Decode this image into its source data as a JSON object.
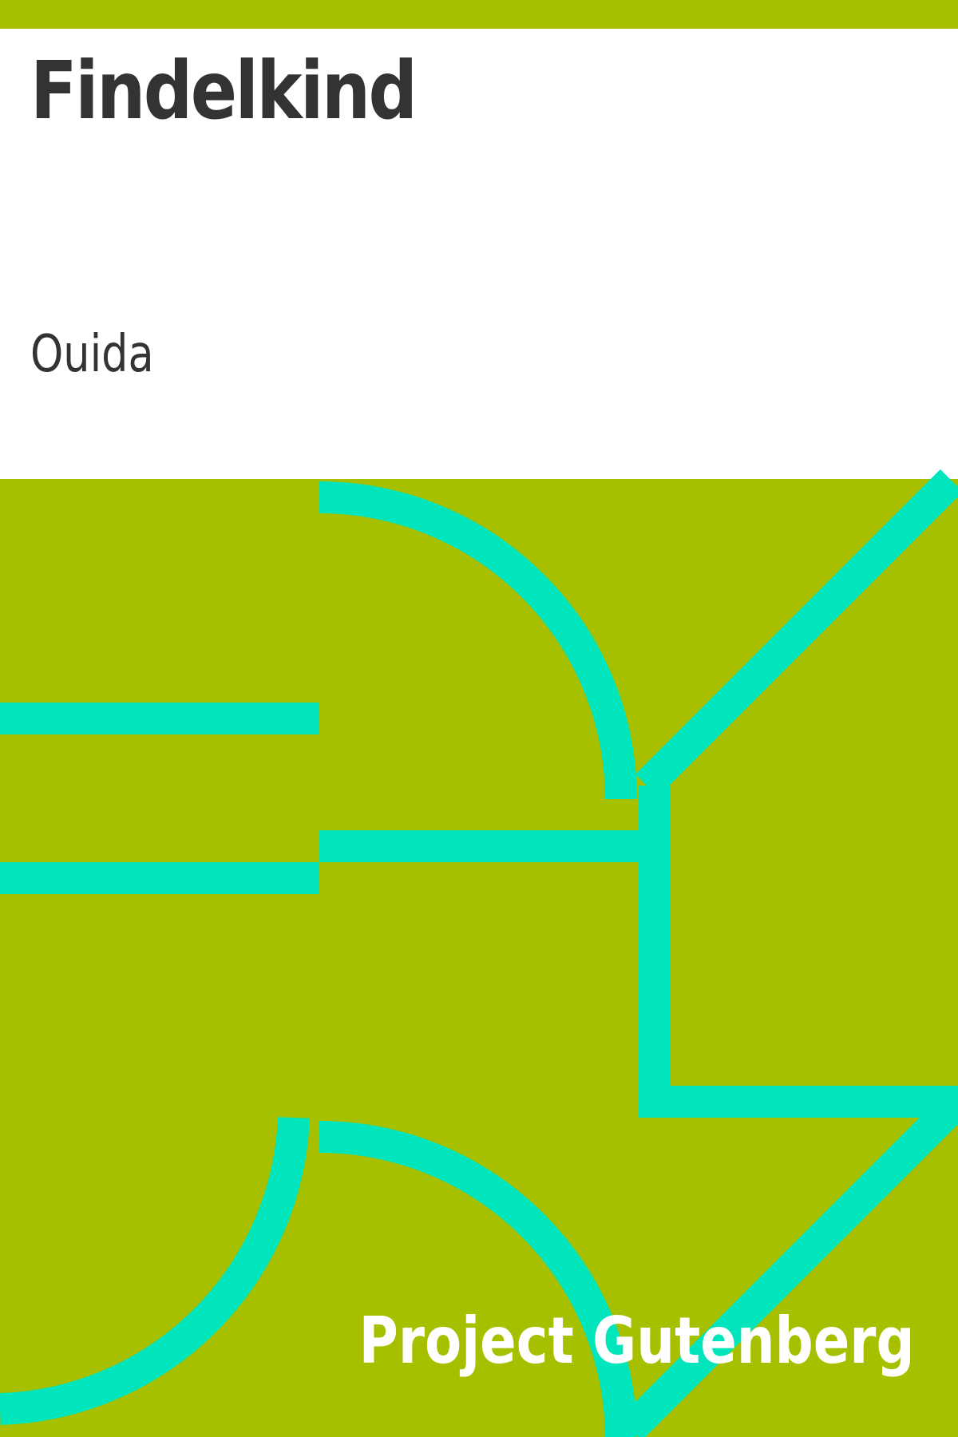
{
  "cover": {
    "title": "Findelkind",
    "author": "Ouida",
    "publisher": "Project Gutenberg"
  },
  "colors": {
    "background": "#a6c000",
    "panel": "#ffffff",
    "ornament": "#00e5bb",
    "title_text": "#333333",
    "publisher_text": "#ffffff"
  }
}
